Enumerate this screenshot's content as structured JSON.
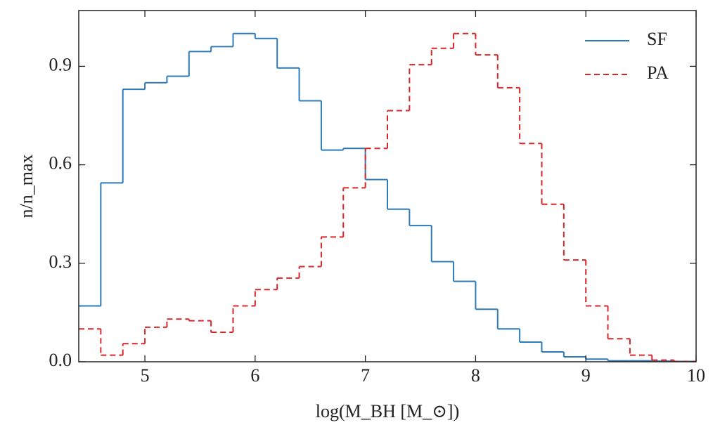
{
  "chart_data": {
    "type": "histogram",
    "x_label": "log(M_BH [M_⊙])",
    "y_label": "n/n_max",
    "bins": [
      4.4,
      4.6,
      4.8,
      5.0,
      5.2,
      5.4,
      5.6,
      5.8,
      6.0,
      6.2,
      6.4,
      6.6,
      6.8,
      7.0,
      7.2,
      7.4,
      7.6,
      7.8,
      8.0,
      8.2,
      8.4,
      8.6,
      8.8,
      9.0,
      9.2,
      9.4,
      9.6,
      9.8,
      10.0
    ],
    "series": [
      {
        "name": "SF",
        "color": "#2b7bba",
        "linestyle": "solid",
        "values": [
          0.17,
          0.545,
          0.83,
          0.85,
          0.87,
          0.945,
          0.96,
          1.0,
          0.985,
          0.895,
          0.795,
          0.645,
          0.65,
          0.555,
          0.465,
          0.415,
          0.305,
          0.245,
          0.16,
          0.1,
          0.06,
          0.03,
          0.015,
          0.008,
          0.003,
          0.003,
          0.002,
          0.001
        ]
      },
      {
        "name": "PA",
        "color": "#d62728",
        "linestyle": "dashed",
        "values": [
          0.1,
          0.02,
          0.055,
          0.105,
          0.13,
          0.125,
          0.09,
          0.17,
          0.22,
          0.255,
          0.29,
          0.38,
          0.53,
          0.65,
          0.765,
          0.905,
          0.955,
          1.0,
          0.935,
          0.835,
          0.665,
          0.48,
          0.31,
          0.17,
          0.07,
          0.02,
          0.005,
          0.001
        ]
      }
    ],
    "xlim": [
      4.4,
      10
    ],
    "ylim": [
      0,
      1.07
    ],
    "xticks": [
      5,
      6,
      7,
      8,
      9,
      10
    ],
    "yticks": [
      {
        "value": 0,
        "label": "0.0"
      },
      0.3,
      0.6,
      0.9
    ],
    "legend": "upper right"
  }
}
